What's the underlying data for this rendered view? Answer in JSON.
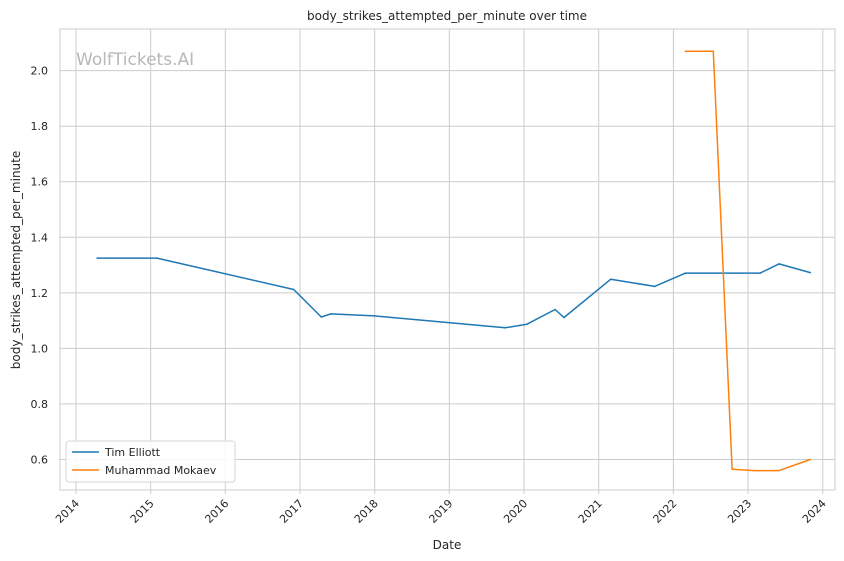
{
  "chart_data": {
    "type": "line",
    "title": "body_strikes_attempted_per_minute over time",
    "xlabel": "Date",
    "ylabel": "body_strikes_attempted_per_minute",
    "watermark": "WolfTickets.AI",
    "x_ticks": [
      "2014",
      "2015",
      "2016",
      "2017",
      "2018",
      "2019",
      "2020",
      "2021",
      "2022",
      "2023",
      "2024"
    ],
    "y_ticks": [
      "0.6",
      "0.8",
      "1.0",
      "1.2",
      "1.4",
      "1.6",
      "1.8",
      "2.0"
    ],
    "xlim": [
      "2013-10-15",
      "2024-03-01"
    ],
    "ylim": [
      0.49,
      2.15
    ],
    "grid": true,
    "legend_position": "lower-left",
    "series": [
      {
        "name": "Tim Elliott",
        "color": "#1f77b4",
        "points": [
          [
            "2014-04-15",
            1.325
          ],
          [
            "2015-02-01",
            1.325
          ],
          [
            "2016-12-01",
            1.212
          ],
          [
            "2017-04-15",
            1.113
          ],
          [
            "2017-06-01",
            1.124
          ],
          [
            "2018-01-01",
            1.117
          ],
          [
            "2019-10-01",
            1.074
          ],
          [
            "2020-01-15",
            1.087
          ],
          [
            "2020-06-01",
            1.14
          ],
          [
            "2020-07-15",
            1.111
          ],
          [
            "2021-03-01",
            1.249
          ],
          [
            "2021-10-01",
            1.223
          ],
          [
            "2022-03-01",
            1.271
          ],
          [
            "2023-03-01",
            1.271
          ],
          [
            "2023-06-01",
            1.304
          ],
          [
            "2023-11-01",
            1.273
          ]
        ]
      },
      {
        "name": "Muhammad Mokaev",
        "color": "#ff7f0e",
        "points": [
          [
            "2022-03-01",
            2.07
          ],
          [
            "2022-07-15",
            2.07
          ],
          [
            "2022-10-15",
            0.565
          ],
          [
            "2023-02-01",
            0.56
          ],
          [
            "2023-06-01",
            0.56
          ],
          [
            "2023-11-01",
            0.6
          ]
        ]
      }
    ]
  }
}
